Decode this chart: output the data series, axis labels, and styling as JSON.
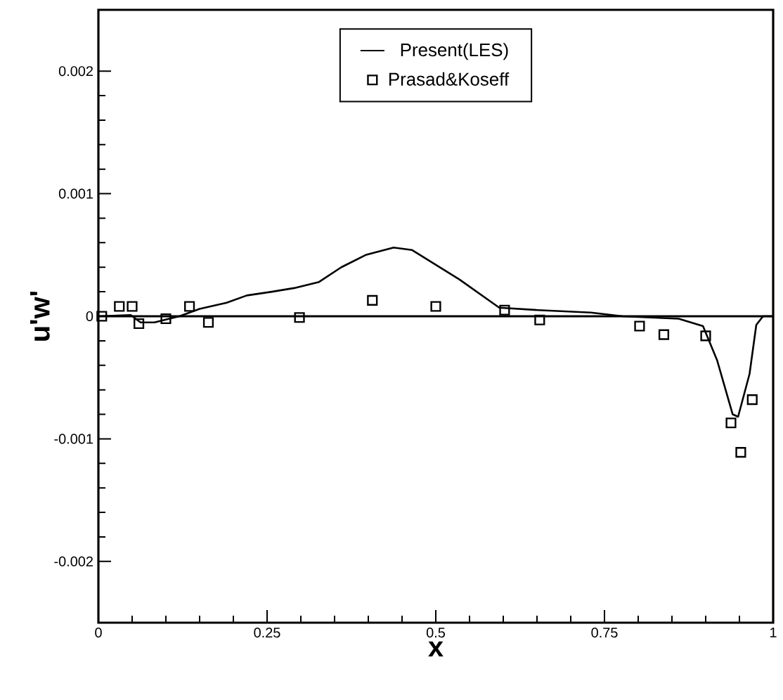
{
  "chart_data": {
    "type": "line",
    "xlabel": "x",
    "ylabel": "u'w'",
    "xlim": [
      0,
      1
    ],
    "ylim": [
      -0.0025,
      0.0025
    ],
    "xticks": [
      0,
      0.25,
      0.5,
      0.75,
      1
    ],
    "yticks": [
      -0.002,
      -0.001,
      0,
      0.001,
      0.002
    ],
    "legend": "top",
    "ref_lines": [
      {
        "axis": "y",
        "value": 0,
        "color": "#000000"
      }
    ],
    "series": [
      {
        "name": "Present(LES)",
        "color": "#000000",
        "marker": "none",
        "line_style": "solid",
        "x": [
          0,
          0.048,
          0.0625,
          0.083,
          0.12,
          0.15,
          0.19,
          0.22,
          0.257,
          0.29,
          0.327,
          0.36,
          0.396,
          0.4375,
          0.465,
          0.5,
          0.535,
          0.594,
          0.652,
          0.73,
          0.777,
          0.86,
          0.896,
          0.917,
          0.94,
          0.948,
          0.965,
          0.975,
          0.985,
          1.0
        ],
        "values": [
          0,
          1e-05,
          -5e-05,
          -5e-05,
          0,
          6e-05,
          0.00011,
          0.00017,
          0.0002,
          0.00023,
          0.00028,
          0.0004,
          0.0005,
          0.00056,
          0.00054,
          0.00042,
          0.0003,
          7e-05,
          5e-05,
          3e-05,
          0,
          -2e-05,
          -8e-05,
          -0.00036,
          -0.0008,
          -0.00082,
          -0.00047,
          -7e-05,
          0,
          0
        ]
      },
      {
        "name": "Prasad&Koseff",
        "type": "scatter",
        "color": "#000000",
        "marker": "square",
        "x": [
          0.005,
          0.031,
          0.05,
          0.06,
          0.1,
          0.135,
          0.163,
          0.298,
          0.406,
          0.5,
          0.602,
          0.654,
          0.802,
          0.838,
          0.9,
          0.9375,
          0.952,
          0.969
        ],
        "values": [
          0,
          8e-05,
          8e-05,
          -6e-05,
          -2e-05,
          8e-05,
          -5e-05,
          -1e-05,
          0.00013,
          8e-05,
          5e-05,
          -3e-05,
          -8e-05,
          -0.00015,
          -0.00016,
          -0.00087,
          -0.00111,
          -0.00068
        ]
      }
    ]
  }
}
